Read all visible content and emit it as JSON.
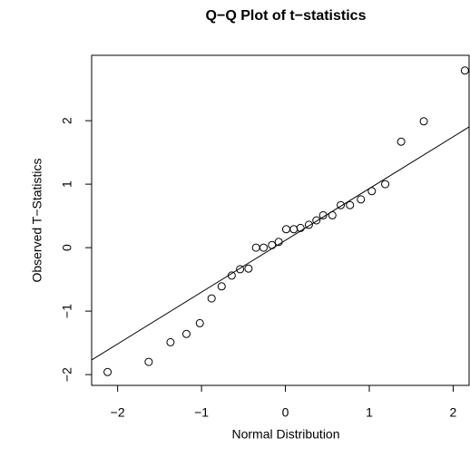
{
  "chart_data": {
    "type": "scatter",
    "title": "Q−Q Plot of t−statistics",
    "x_label": "Normal Distribution",
    "y_label": "Observed T−Statistics",
    "x": [
      -2.12,
      -1.63,
      -1.37,
      -1.18,
      -1.02,
      -0.88,
      -0.76,
      -0.64,
      -0.54,
      -0.44,
      -0.35,
      -0.26,
      -0.16,
      -0.08,
      0.01,
      0.1,
      0.18,
      0.28,
      0.37,
      0.45,
      0.56,
      0.66,
      0.77,
      0.9,
      1.03,
      1.19,
      1.38,
      1.65,
      2.14
    ],
    "values": [
      -1.96,
      -1.8,
      -1.49,
      -1.36,
      -1.19,
      -0.8,
      -0.61,
      -0.44,
      -0.34,
      -0.33,
      0.0,
      0.0,
      0.04,
      0.09,
      0.29,
      0.29,
      0.31,
      0.36,
      0.43,
      0.51,
      0.51,
      0.67,
      0.67,
      0.76,
      0.89,
      1.0,
      1.67,
      1.99,
      2.79
    ],
    "color": "#000000",
    "reference_line": {
      "intercept": 0.115,
      "slope": 0.816
    },
    "xlim": [
      -2.31,
      2.19
    ],
    "ylim": [
      -2.17,
      3.03
    ],
    "xticks": [
      {
        "value": -2,
        "label": "−2"
      },
      {
        "value": -1,
        "label": "−1"
      },
      0,
      1,
      2
    ],
    "yticks": [
      {
        "value": -2,
        "label": "−2"
      },
      {
        "value": -1,
        "label": "−1"
      },
      0,
      1,
      2
    ],
    "grid": false
  }
}
